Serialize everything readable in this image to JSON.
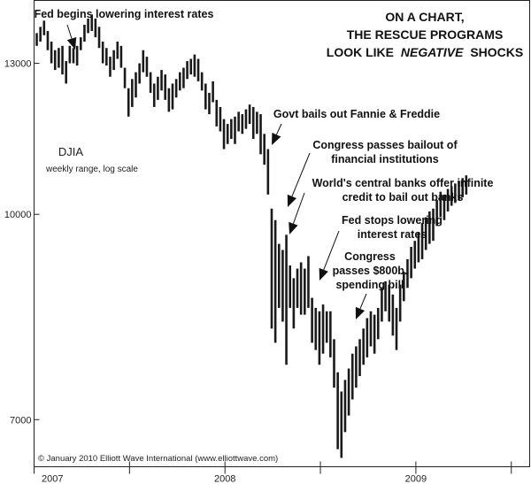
{
  "chart_data": {
    "type": "bar",
    "subtype": "weekly-range",
    "title_lines": [
      "ON A CHART,",
      "THE RESCUE PROGRAMS",
      "LOOK LIKE",
      "NEGATIVE",
      "SHOCKS"
    ],
    "series_name": "DJIA",
    "series_note": "weekly range, log scale",
    "y_scale": "log",
    "ylim": [
      6450,
      14500
    ],
    "y_ticks": [
      {
        "value": 13000,
        "label": "13000"
      },
      {
        "value": 10000,
        "label": "10000"
      },
      {
        "value": 7000,
        "label": "7000"
      }
    ],
    "x_range": [
      0,
      135
    ],
    "x_ticks": [
      0,
      26,
      52,
      78,
      104,
      130
    ],
    "x_labels": [
      {
        "pos": 5,
        "label": "2007"
      },
      {
        "pos": 52,
        "label": "2008"
      },
      {
        "pos": 104,
        "label": "2009"
      }
    ],
    "weekly_ranges": [
      [
        13400,
        13700
      ],
      [
        13500,
        13850
      ],
      [
        13650,
        14000
      ],
      [
        13300,
        13750
      ],
      [
        13000,
        13500
      ],
      [
        12850,
        13300
      ],
      [
        12900,
        13350
      ],
      [
        12750,
        13400
      ],
      [
        12550,
        13050
      ],
      [
        13000,
        13400
      ],
      [
        13000,
        13350
      ],
      [
        12950,
        13400
      ],
      [
        13300,
        13600
      ],
      [
        13500,
        13900
      ],
      [
        13700,
        14050
      ],
      [
        13750,
        14150
      ],
      [
        13600,
        14050
      ],
      [
        13350,
        13850
      ],
      [
        13000,
        13500
      ],
      [
        12950,
        13350
      ],
      [
        12700,
        13150
      ],
      [
        12850,
        13300
      ],
      [
        13100,
        13500
      ],
      [
        12900,
        13400
      ],
      [
        12450,
        12900
      ],
      [
        11850,
        12450
      ],
      [
        12050,
        12650
      ],
      [
        12250,
        12800
      ],
      [
        12550,
        13000
      ],
      [
        12800,
        13300
      ],
      [
        12700,
        13150
      ],
      [
        12350,
        12800
      ],
      [
        12050,
        12550
      ],
      [
        12200,
        12700
      ],
      [
        12400,
        12850
      ],
      [
        12200,
        12750
      ],
      [
        11950,
        12450
      ],
      [
        12000,
        12550
      ],
      [
        12250,
        12650
      ],
      [
        12400,
        12800
      ],
      [
        12450,
        12900
      ],
      [
        12650,
        13050
      ],
      [
        12750,
        13100
      ],
      [
        12700,
        13200
      ],
      [
        12600,
        13100
      ],
      [
        12400,
        12800
      ],
      [
        12000,
        12550
      ],
      [
        11900,
        12350
      ],
      [
        12150,
        12600
      ],
      [
        11650,
        12200
      ],
      [
        11550,
        12050
      ],
      [
        11200,
        11800
      ],
      [
        11300,
        11700
      ],
      [
        11400,
        11800
      ],
      [
        11300,
        11850
      ],
      [
        11550,
        11950
      ],
      [
        11500,
        11900
      ],
      [
        11600,
        12000
      ],
      [
        11700,
        12100
      ],
      [
        11400,
        12050
      ],
      [
        11500,
        11950
      ],
      [
        11100,
        11900
      ],
      [
        10900,
        11500
      ],
      [
        10350,
        11200
      ],
      [
        8200,
        10100
      ],
      [
        8000,
        9900
      ],
      [
        8500,
        9500
      ],
      [
        8300,
        9400
      ],
      [
        7700,
        9650
      ],
      [
        8500,
        9150
      ],
      [
        8200,
        8950
      ],
      [
        8500,
        9100
      ],
      [
        8400,
        9200
      ],
      [
        8400,
        9100
      ],
      [
        8500,
        9300
      ],
      [
        8000,
        8650
      ],
      [
        7900,
        8500
      ],
      [
        7700,
        8450
      ],
      [
        7850,
        8550
      ],
      [
        8000,
        8450
      ],
      [
        7800,
        8450
      ],
      [
        7400,
        8050
      ],
      [
        6650,
        7600
      ],
      [
        6550,
        7350
      ],
      [
        6850,
        7500
      ],
      [
        7050,
        7650
      ],
      [
        7250,
        7850
      ],
      [
        7400,
        7950
      ],
      [
        7550,
        8050
      ],
      [
        7700,
        8200
      ],
      [
        7800,
        8350
      ],
      [
        7950,
        8450
      ],
      [
        7850,
        8400
      ],
      [
        8050,
        8500
      ],
      [
        8300,
        8800
      ],
      [
        8450,
        8900
      ],
      [
        8300,
        8850
      ],
      [
        8100,
        8700
      ],
      [
        7900,
        8500
      ],
      [
        8300,
        8850
      ],
      [
        8600,
        9050
      ],
      [
        8800,
        9250
      ],
      [
        8950,
        9450
      ],
      [
        9100,
        9550
      ],
      [
        9200,
        9700
      ],
      [
        9250,
        9850
      ],
      [
        9400,
        9950
      ],
      [
        9500,
        10050
      ],
      [
        9550,
        10100
      ],
      [
        9800,
        10250
      ],
      [
        9950,
        10400
      ],
      [
        9900,
        10350
      ],
      [
        10050,
        10450
      ],
      [
        10150,
        10500
      ],
      [
        10200,
        10550
      ],
      [
        10250,
        10600
      ],
      [
        10300,
        10650
      ],
      [
        10350,
        10700
      ]
    ],
    "annotations": [
      {
        "lines": [
          "Fed begins lowering interest rates"
        ],
        "week": 4
      },
      {
        "lines": [
          "Govt bails out Fannie & Freddie"
        ],
        "week": 61
      },
      {
        "lines": [
          "Congress passes bailout of",
          "financial institutions"
        ],
        "week": 63
      },
      {
        "lines": [
          "World's central banks offer infinite",
          "credit to bail out banks"
        ],
        "week": 66
      },
      {
        "lines": [
          "Fed stops lowering",
          "interest rates"
        ],
        "week": 74
      },
      {
        "lines": [
          "Congress",
          "passes $800b.",
          "spending bill"
        ],
        "week": 83
      }
    ],
    "credit": "© January 2010 Elliott Wave International (www.elliottwave.com)"
  }
}
